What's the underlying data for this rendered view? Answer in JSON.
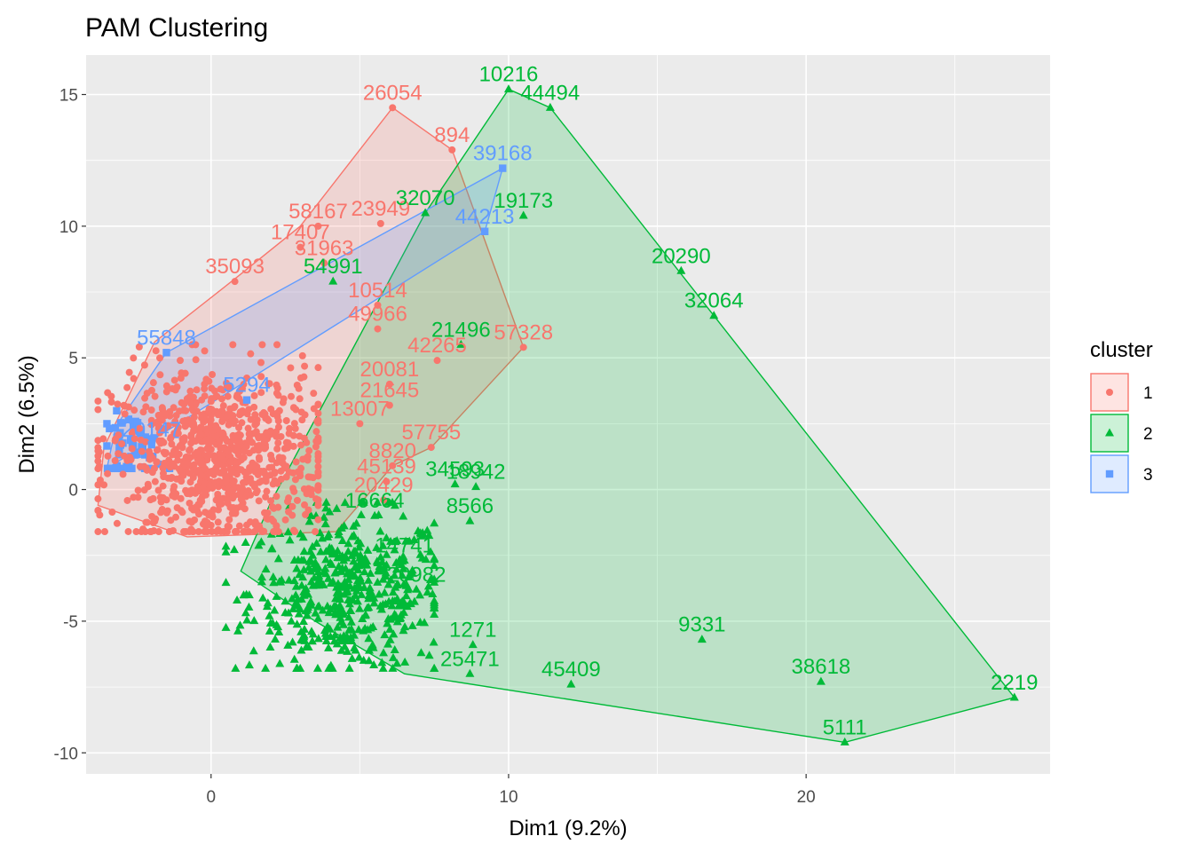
{
  "chart_data": {
    "type": "scatter",
    "title": "PAM Clustering",
    "xlabel": "Dim1 (9.2%)",
    "ylabel": "Dim2 (6.5%)",
    "xlim": [
      -4.2,
      28.2
    ],
    "ylim": [
      -10.8,
      16.5
    ],
    "x_ticks": [
      0,
      10,
      20
    ],
    "y_ticks": [
      -10,
      -5,
      0,
      5,
      10,
      15
    ],
    "grid": true,
    "legend": {
      "title": "cluster",
      "position": "right",
      "entries": [
        {
          "label": "1",
          "color": "#F8766D",
          "shape": "circle"
        },
        {
          "label": "2",
          "color": "#00BA38",
          "shape": "triangle"
        },
        {
          "label": "3",
          "color": "#619CFF",
          "shape": "square"
        }
      ]
    },
    "series": [
      {
        "name": "1",
        "color": "#F8766D",
        "shape": "circle",
        "hull": [
          [
            6.1,
            14.5
          ],
          [
            8.1,
            12.9
          ],
          [
            10.5,
            5.4
          ],
          [
            7.4,
            1.6
          ],
          [
            6.1,
            0.9
          ],
          [
            4.2,
            -1.6
          ],
          [
            -0.8,
            -1.8
          ],
          [
            -3.8,
            -0.6
          ],
          [
            -3.6,
            1.6
          ],
          [
            -1.9,
            5.6
          ],
          [
            0.8,
            8.0
          ],
          [
            3.0,
            10.0
          ]
        ],
        "labeled_points": [
          {
            "x": 6.1,
            "y": 14.5,
            "label": "26054"
          },
          {
            "x": 8.1,
            "y": 12.9,
            "label": "894"
          },
          {
            "x": 5.7,
            "y": 10.1,
            "label": "23949"
          },
          {
            "x": 3.6,
            "y": 10.0,
            "label": "58167"
          },
          {
            "x": 3.0,
            "y": 9.2,
            "label": "17407"
          },
          {
            "x": 3.8,
            "y": 8.6,
            "label": "31963"
          },
          {
            "x": 0.8,
            "y": 7.9,
            "label": "35093"
          },
          {
            "x": 5.6,
            "y": 7.0,
            "label": "10514"
          },
          {
            "x": 5.6,
            "y": 6.1,
            "label": "49966"
          },
          {
            "x": 10.5,
            "y": 5.4,
            "label": "57328"
          },
          {
            "x": 7.6,
            "y": 4.9,
            "label": "42265"
          },
          {
            "x": 6.0,
            "y": 4.0,
            "label": "20081"
          },
          {
            "x": 6.0,
            "y": 3.2,
            "label": "21645"
          },
          {
            "x": 5.0,
            "y": 2.5,
            "label": "13007"
          },
          {
            "x": 7.4,
            "y": 1.6,
            "label": "57755"
          },
          {
            "x": 6.1,
            "y": 0.9,
            "label": "8820"
          },
          {
            "x": 5.9,
            "y": 0.3,
            "label": "45139"
          },
          {
            "x": 5.8,
            "y": -0.4,
            "label": "20429"
          }
        ],
        "cloud": {
          "x_range": [
            -3.8,
            3.6
          ],
          "y_range": [
            -1.6,
            5.5
          ],
          "center": [
            0.2,
            1.2
          ],
          "n": 900
        }
      },
      {
        "name": "2",
        "color": "#00BA38",
        "shape": "triangle",
        "hull": [
          [
            10.0,
            15.2
          ],
          [
            11.4,
            14.5
          ],
          [
            16.9,
            6.6
          ],
          [
            27.0,
            -7.9
          ],
          [
            21.3,
            -9.6
          ],
          [
            6.5,
            -7.0
          ],
          [
            3.5,
            -5.0
          ],
          [
            1.0,
            -3.1
          ],
          [
            2.0,
            -0.5
          ],
          [
            7.2,
            10.5
          ]
        ],
        "labeled_points": [
          {
            "x": 10.0,
            "y": 15.2,
            "label": "10216"
          },
          {
            "x": 11.4,
            "y": 14.5,
            "label": "44494"
          },
          {
            "x": 7.2,
            "y": 10.5,
            "label": "32070"
          },
          {
            "x": 10.5,
            "y": 10.4,
            "label": "19173"
          },
          {
            "x": 15.8,
            "y": 8.3,
            "label": "20290"
          },
          {
            "x": 16.9,
            "y": 6.6,
            "label": "32064"
          },
          {
            "x": 4.1,
            "y": 7.9,
            "label": "54991"
          },
          {
            "x": 8.4,
            "y": 5.5,
            "label": "21496"
          },
          {
            "x": 8.2,
            "y": 0.2,
            "label": "34593"
          },
          {
            "x": 8.9,
            "y": 0.1,
            "label": "18942"
          },
          {
            "x": 8.7,
            "y": -1.2,
            "label": "8566"
          },
          {
            "x": 5.5,
            "y": -1.0,
            "label": "16664"
          },
          {
            "x": 6.5,
            "y": -2.7,
            "label": "14741"
          },
          {
            "x": 6.9,
            "y": -3.8,
            "label": "20982"
          },
          {
            "x": 8.8,
            "y": -5.9,
            "label": "1271"
          },
          {
            "x": 8.7,
            "y": -7.0,
            "label": "25471"
          },
          {
            "x": 16.5,
            "y": -5.7,
            "label": "9331"
          },
          {
            "x": 12.1,
            "y": -7.4,
            "label": "45409"
          },
          {
            "x": 20.5,
            "y": -7.3,
            "label": "38618"
          },
          {
            "x": 27.0,
            "y": -7.9,
            "label": "2219"
          },
          {
            "x": 21.3,
            "y": -9.6,
            "label": "5111"
          }
        ],
        "cloud": {
          "x_range": [
            0.5,
            7.5
          ],
          "y_range": [
            -6.8,
            -0.5
          ],
          "center": [
            4.6,
            -3.9
          ],
          "n": 500
        }
      },
      {
        "name": "3",
        "color": "#619CFF",
        "shape": "square",
        "hull": [
          [
            9.8,
            12.2
          ],
          [
            9.2,
            9.8
          ],
          [
            -3.5,
            0.8
          ],
          [
            -3.2,
            2.4
          ],
          [
            -1.5,
            5.2
          ]
        ],
        "labeled_points": [
          {
            "x": 9.8,
            "y": 12.2,
            "label": "39168"
          },
          {
            "x": 9.2,
            "y": 9.8,
            "label": "44213"
          },
          {
            "x": -1.5,
            "y": 5.2,
            "label": "55848"
          },
          {
            "x": 1.2,
            "y": 3.4,
            "label": "5294"
          },
          {
            "x": -2.0,
            "y": 1.7,
            "label": "20147"
          }
        ],
        "cloud": {
          "x_range": [
            -3.5,
            -1.2
          ],
          "y_range": [
            0.8,
            3.4
          ],
          "center": [
            -2.7,
            1.6
          ],
          "n": 60
        }
      }
    ]
  }
}
